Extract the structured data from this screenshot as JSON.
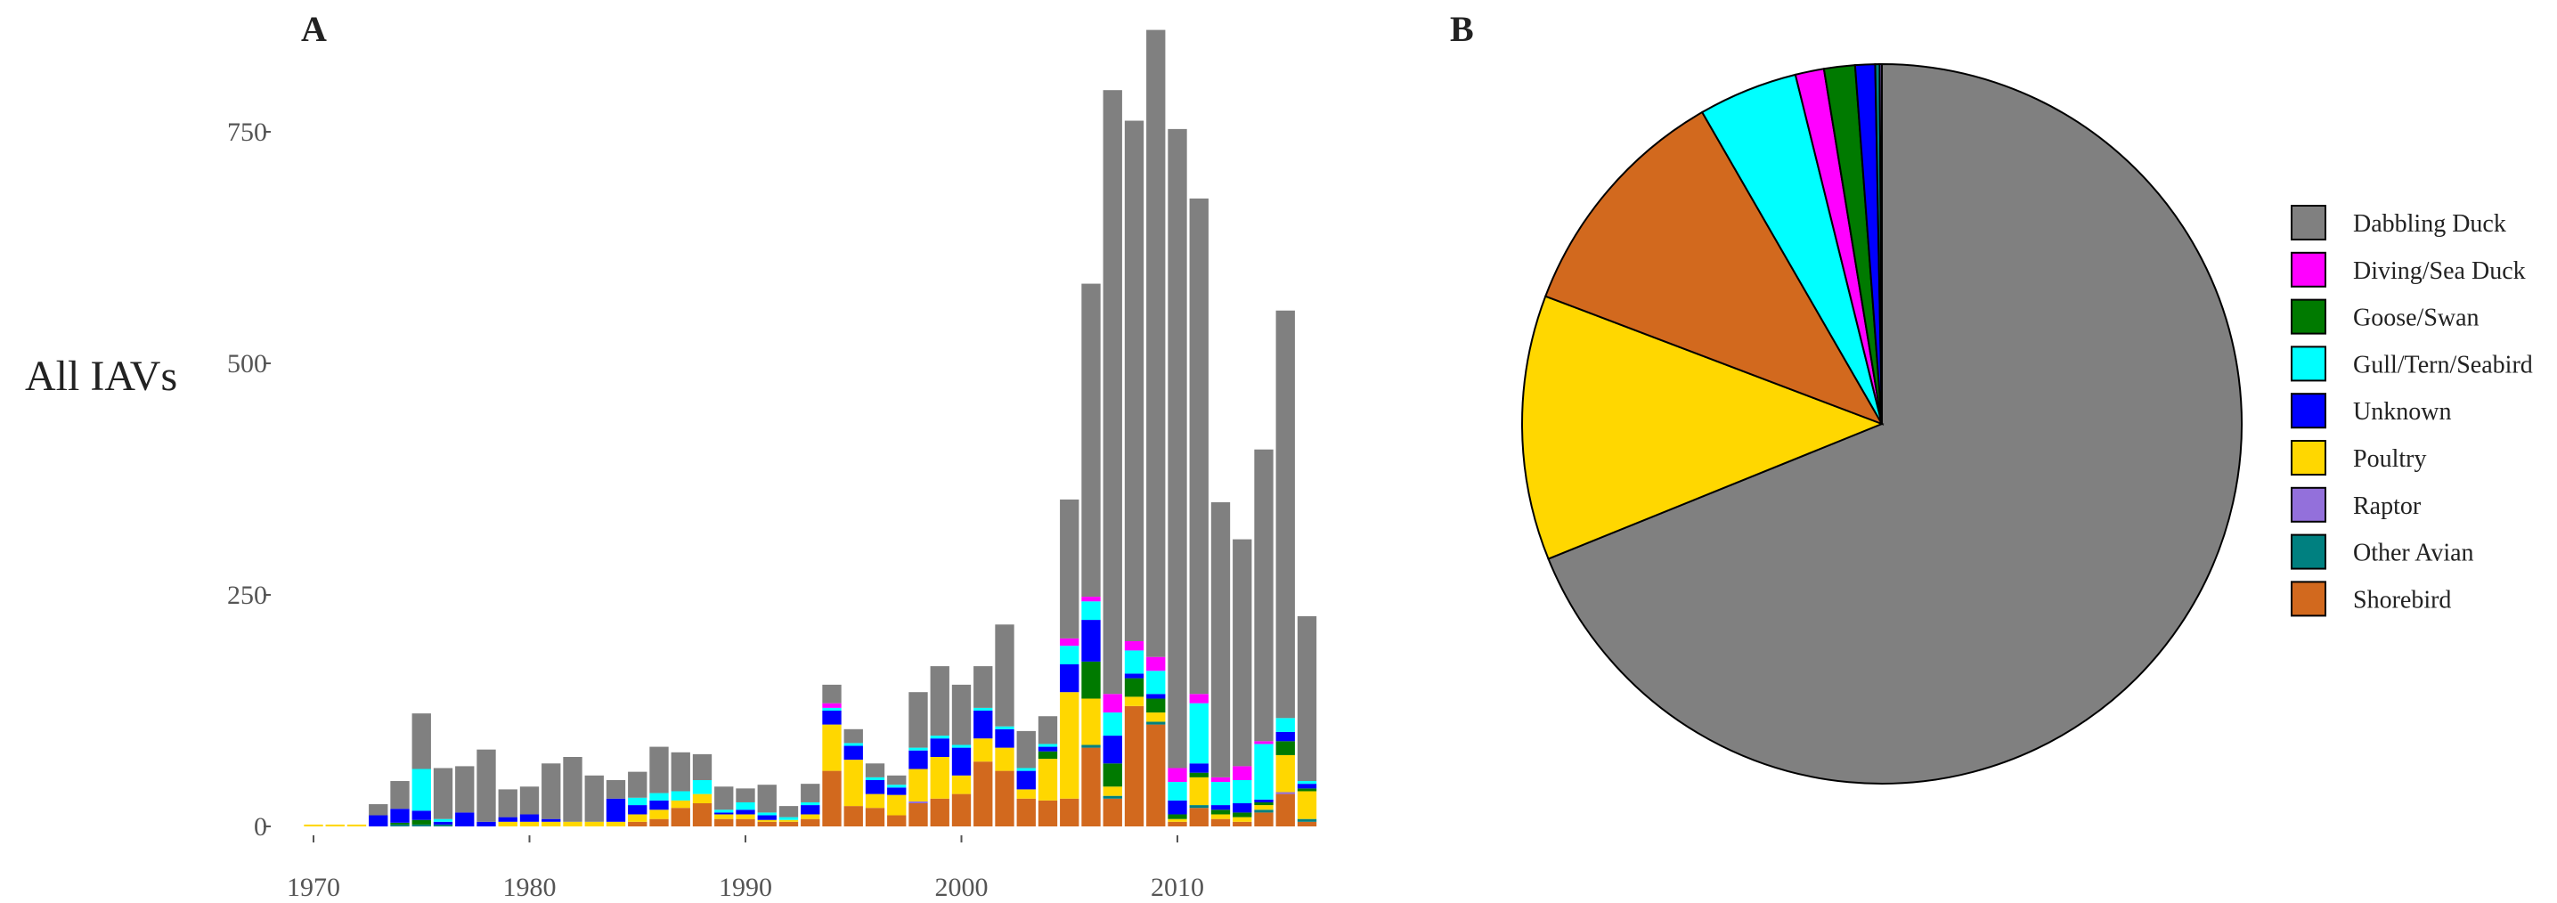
{
  "panel_a_label": "A",
  "panel_b_label": "B",
  "row_label": "All IAVs",
  "colors": {
    "Dabbling Duck": "#808080",
    "Diving/Sea Duck": "#ff00ff",
    "Goose/Swan": "#007a00",
    "Gull/Tern/Seabird": "#00ffff",
    "Unknown": "#0000ff",
    "Poultry": "#ffd700",
    "Raptor": "#9370db",
    "Other Avian": "#008080",
    "Shorebird": "#d2691e"
  },
  "chart_data": [
    {
      "type": "bar",
      "stacked": true,
      "panel": "A",
      "ylabel": "All IAVs",
      "ylim": [
        0,
        880
      ],
      "yticks": [
        0,
        250,
        500,
        750
      ],
      "xticks": [
        1970,
        1980,
        1990,
        2000,
        2010
      ],
      "grid": false,
      "categories": [
        1970,
        1971,
        1972,
        1973,
        1974,
        1975,
        1976,
        1977,
        1978,
        1979,
        1980,
        1981,
        1982,
        1983,
        1984,
        1985,
        1986,
        1987,
        1988,
        1989,
        1990,
        1991,
        1992,
        1993,
        1994,
        1995,
        1996,
        1997,
        1998,
        1999,
        2000,
        2001,
        2002,
        2003,
        2004,
        2005,
        2006,
        2007,
        2008,
        2009,
        2010,
        2011,
        2012,
        2013,
        2014,
        2015,
        2016
      ],
      "series": [
        {
          "name": "Shorebird",
          "values": [
            0,
            0,
            0,
            0,
            0,
            0,
            0,
            0,
            0,
            0,
            0,
            0,
            0,
            0,
            0,
            5,
            8,
            20,
            25,
            8,
            8,
            5,
            5,
            8,
            60,
            22,
            20,
            12,
            25,
            30,
            35,
            70,
            60,
            30,
            28,
            30,
            85,
            30,
            130,
            110,
            5,
            20,
            8,
            5,
            15,
            35,
            5
          ]
        },
        {
          "name": "Other Avian",
          "values": [
            0,
            0,
            0,
            0,
            2,
            2,
            2,
            0,
            0,
            0,
            0,
            0,
            0,
            0,
            0,
            0,
            0,
            0,
            0,
            0,
            0,
            0,
            0,
            0,
            0,
            0,
            0,
            0,
            0,
            0,
            0,
            0,
            0,
            0,
            0,
            0,
            3,
            3,
            0,
            3,
            0,
            3,
            0,
            0,
            3,
            0,
            3
          ]
        },
        {
          "name": "Raptor",
          "values": [
            0,
            0,
            0,
            0,
            0,
            0,
            0,
            0,
            0,
            0,
            0,
            0,
            0,
            0,
            0,
            0,
            0,
            0,
            0,
            0,
            0,
            0,
            0,
            0,
            0,
            0,
            0,
            0,
            2,
            0,
            0,
            0,
            0,
            0,
            0,
            0,
            0,
            0,
            0,
            0,
            0,
            0,
            0,
            0,
            0,
            2,
            0
          ]
        },
        {
          "name": "Poultry",
          "values": [
            2,
            2,
            2,
            0,
            0,
            0,
            0,
            0,
            0,
            5,
            5,
            5,
            5,
            5,
            5,
            8,
            10,
            8,
            10,
            5,
            5,
            2,
            2,
            5,
            50,
            50,
            15,
            22,
            35,
            45,
            20,
            25,
            25,
            10,
            45,
            115,
            50,
            10,
            10,
            10,
            3,
            30,
            5,
            5,
            5,
            40,
            30
          ]
        },
        {
          "name": "Goose/Swan",
          "values": [
            0,
            0,
            0,
            0,
            2,
            5,
            0,
            0,
            0,
            0,
            0,
            0,
            0,
            0,
            0,
            0,
            0,
            0,
            0,
            0,
            0,
            0,
            0,
            0,
            0,
            0,
            0,
            0,
            0,
            0,
            0,
            0,
            0,
            0,
            8,
            0,
            40,
            25,
            20,
            15,
            5,
            5,
            5,
            5,
            3,
            15,
            3
          ]
        },
        {
          "name": "Unknown",
          "values": [
            0,
            0,
            0,
            12,
            15,
            10,
            3,
            15,
            5,
            5,
            8,
            3,
            0,
            0,
            25,
            10,
            10,
            0,
            0,
            2,
            5,
            5,
            0,
            10,
            15,
            15,
            15,
            8,
            20,
            20,
            30,
            30,
            20,
            20,
            5,
            30,
            45,
            30,
            5,
            5,
            15,
            10,
            5,
            10,
            3,
            10,
            5
          ]
        },
        {
          "name": "Gull/Tern/Seabird",
          "values": [
            0,
            0,
            0,
            0,
            0,
            45,
            3,
            0,
            0,
            0,
            0,
            0,
            0,
            0,
            0,
            8,
            8,
            10,
            15,
            3,
            8,
            3,
            3,
            3,
            3,
            3,
            3,
            3,
            3,
            3,
            3,
            3,
            3,
            3,
            3,
            20,
            20,
            25,
            25,
            25,
            20,
            65,
            25,
            25,
            60,
            15,
            3
          ]
        },
        {
          "name": "Diving/Sea Duck",
          "values": [
            0,
            0,
            0,
            0,
            0,
            0,
            0,
            0,
            0,
            0,
            0,
            0,
            0,
            0,
            0,
            0,
            0,
            0,
            0,
            0,
            0,
            0,
            0,
            0,
            5,
            0,
            0,
            0,
            0,
            0,
            0,
            0,
            0,
            0,
            0,
            8,
            5,
            20,
            10,
            15,
            15,
            10,
            5,
            15,
            3,
            0,
            0
          ]
        },
        {
          "name": "Dabbling Duck",
          "values": [
            0,
            0,
            0,
            12,
            30,
            60,
            55,
            50,
            78,
            30,
            30,
            60,
            70,
            50,
            20,
            28,
            50,
            42,
            28,
            25,
            15,
            30,
            12,
            20,
            20,
            15,
            15,
            10,
            60,
            75,
            65,
            45,
            110,
            40,
            30,
            150,
            338,
            652,
            562,
            677,
            690,
            535,
            297,
            245,
            315,
            440,
            178
          ]
        }
      ]
    },
    {
      "type": "pie",
      "panel": "B",
      "legend_position": "right",
      "slices": [
        {
          "label": "Dabbling Duck",
          "value": 69.5
        },
        {
          "label": "Poultry",
          "value": 12.0
        },
        {
          "label": "Shorebird",
          "value": 11.0
        },
        {
          "label": "Gull/Tern/Seabird",
          "value": 4.5
        },
        {
          "label": "Diving/Sea Duck",
          "value": 1.3
        },
        {
          "label": "Goose/Swan",
          "value": 1.4
        },
        {
          "label": "Unknown",
          "value": 0.9
        },
        {
          "label": "Other Avian",
          "value": 0.2
        },
        {
          "label": "Raptor",
          "value": 0.1
        }
      ],
      "legend": [
        "Dabbling Duck",
        "Diving/Sea Duck",
        "Goose/Swan",
        "Gull/Tern/Seabird",
        "Unknown",
        "Poultry",
        "Raptor",
        "Other Avian",
        "Shorebird"
      ]
    }
  ]
}
